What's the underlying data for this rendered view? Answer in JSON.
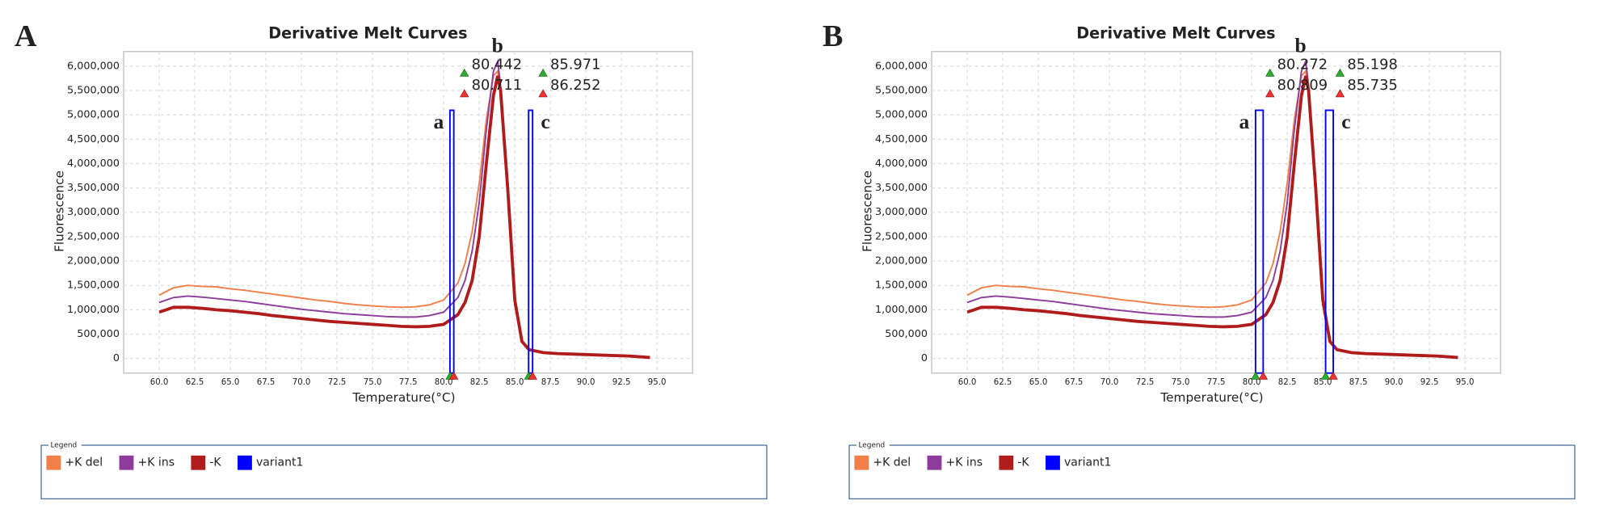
{
  "chart_data": [
    {
      "type": "line",
      "panel": "A",
      "title": "Derivative Melt Curves",
      "xlabel": "Temperature(°C)",
      "ylabel": "Fluorescence",
      "xlim": [
        57.5,
        97.5
      ],
      "ylim": [
        -300000,
        6300000
      ],
      "grid": true,
      "xticks": [
        {
          "value": 60,
          "label": "60.0"
        },
        {
          "value": 62.5,
          "label": "62.5"
        },
        {
          "value": 65,
          "label": "65.0"
        },
        {
          "value": 67.5,
          "label": "67.5"
        },
        {
          "value": 70,
          "label": "70.0"
        },
        {
          "value": 72.5,
          "label": "72.5"
        },
        {
          "value": 75,
          "label": "75.0"
        },
        {
          "value": 77.5,
          "label": "77.5"
        },
        {
          "value": 80,
          "label": "80.0"
        },
        {
          "value": 82.5,
          "label": "82.5"
        },
        {
          "value": 85,
          "label": "85.0"
        },
        {
          "value": 87.5,
          "label": "87.5"
        },
        {
          "value": 90,
          "label": "90.0"
        },
        {
          "value": 92.5,
          "label": "92.5"
        },
        {
          "value": 95,
          "label": "95.0"
        }
      ],
      "yticks": [
        0,
        {
          "value": 500000,
          "label": "500,000"
        },
        {
          "value": 1000000,
          "label": "1,000,000"
        },
        {
          "value": 1500000,
          "label": "1,500,000"
        },
        {
          "value": 2000000,
          "label": "2,000,000"
        },
        {
          "value": 2500000,
          "label": "2,500,000"
        },
        {
          "value": 3000000,
          "label": "3,000,000"
        },
        {
          "value": 3500000,
          "label": "3,500,000"
        },
        {
          "value": 4000000,
          "label": "4,000,000"
        },
        {
          "value": 4500000,
          "label": "4,500,000"
        },
        {
          "value": 5000000,
          "label": "5,000,000"
        },
        {
          "value": 5500000,
          "label": "5,500,000"
        },
        {
          "value": 6000000,
          "label": "6,000,000"
        }
      ],
      "x": [
        60,
        61,
        62,
        63,
        64,
        65,
        66,
        67,
        68,
        69,
        70,
        71,
        72,
        73,
        74,
        75,
        76,
        77,
        78,
        79,
        80,
        81,
        81.5,
        82,
        82.5,
        83,
        83.5,
        83.8,
        84,
        84.5,
        85,
        85.5,
        86,
        87,
        88,
        89,
        90,
        91,
        92,
        93,
        94,
        94.5
      ],
      "series": [
        {
          "name": "+K del",
          "color": "#f07f4a",
          "values": [
            1300000,
            1450000,
            1500000,
            1480000,
            1470000,
            1430000,
            1400000,
            1360000,
            1320000,
            1280000,
            1240000,
            1200000,
            1170000,
            1130000,
            1100000,
            1080000,
            1060000,
            1050000,
            1060000,
            1100000,
            1200000,
            1550000,
            1950000,
            2600000,
            3600000,
            4900000,
            5800000,
            5900000,
            5400000,
            3300000,
            1100000,
            330000,
            170000,
            120000,
            100000,
            90000,
            80000,
            70000,
            60000,
            50000,
            30000,
            20000
          ]
        },
        {
          "name": "+K ins",
          "color": "#8e3c9c",
          "values": [
            1150000,
            1250000,
            1280000,
            1260000,
            1230000,
            1200000,
            1170000,
            1130000,
            1090000,
            1050000,
            1010000,
            980000,
            950000,
            920000,
            900000,
            880000,
            860000,
            850000,
            850000,
            880000,
            950000,
            1250000,
            1600000,
            2200000,
            3200000,
            4700000,
            5900000,
            6100000,
            5600000,
            3400000,
            1100000,
            330000,
            170000,
            120000,
            100000,
            90000,
            80000,
            70000,
            60000,
            50000,
            30000,
            20000
          ]
        },
        {
          "name": "-K",
          "color": "#b01c1c",
          "values": [
            950000,
            1050000,
            1050000,
            1030000,
            1000000,
            980000,
            950000,
            920000,
            880000,
            850000,
            820000,
            790000,
            760000,
            740000,
            720000,
            700000,
            680000,
            660000,
            650000,
            660000,
            700000,
            900000,
            1150000,
            1600000,
            2500000,
            4000000,
            5400000,
            5800000,
            5500000,
            3500000,
            1200000,
            350000,
            180000,
            120000,
            100000,
            90000,
            80000,
            70000,
            60000,
            50000,
            30000,
            20000
          ]
        }
      ],
      "regions": {
        "name": "variant1",
        "color": "#0000ff",
        "bounds": [
          {
            "start": 80.442,
            "end": 80.711,
            "label": "a"
          },
          {
            "start": 85.971,
            "end": 86.252,
            "label": "c"
          }
        ]
      },
      "peak_label": "b",
      "legend_title": "Legend"
    },
    {
      "type": "line",
      "panel": "B",
      "title": "Derivative Melt Curves",
      "xlabel": "Temperature(°C)",
      "ylabel": "Fluorescence",
      "xlim": [
        57.5,
        97.5
      ],
      "ylim": [
        -300000,
        6300000
      ],
      "grid": true,
      "xticks": [
        {
          "value": 60,
          "label": "60.0"
        },
        {
          "value": 62.5,
          "label": "62.5"
        },
        {
          "value": 65,
          "label": "65.0"
        },
        {
          "value": 67.5,
          "label": "67.5"
        },
        {
          "value": 70,
          "label": "70.0"
        },
        {
          "value": 72.5,
          "label": "72.5"
        },
        {
          "value": 75,
          "label": "75.0"
        },
        {
          "value": 77.5,
          "label": "77.5"
        },
        {
          "value": 80,
          "label": "80.0"
        },
        {
          "value": 82.5,
          "label": "82.5"
        },
        {
          "value": 85,
          "label": "85.0"
        },
        {
          "value": 87.5,
          "label": "87.5"
        },
        {
          "value": 90,
          "label": "90.0"
        },
        {
          "value": 92.5,
          "label": "92.5"
        },
        {
          "value": 95,
          "label": "95.0"
        }
      ],
      "yticks": [
        0,
        {
          "value": 500000,
          "label": "500,000"
        },
        {
          "value": 1000000,
          "label": "1,000,000"
        },
        {
          "value": 1500000,
          "label": "1,500,000"
        },
        {
          "value": 2000000,
          "label": "2,000,000"
        },
        {
          "value": 2500000,
          "label": "2,500,000"
        },
        {
          "value": 3000000,
          "label": "3,000,000"
        },
        {
          "value": 3500000,
          "label": "3,500,000"
        },
        {
          "value": 4000000,
          "label": "4,000,000"
        },
        {
          "value": 4500000,
          "label": "4,500,000"
        },
        {
          "value": 5000000,
          "label": "5,000,000"
        },
        {
          "value": 5500000,
          "label": "5,500,000"
        },
        {
          "value": 6000000,
          "label": "6,000,000"
        }
      ],
      "x": [
        60,
        61,
        62,
        63,
        64,
        65,
        66,
        67,
        68,
        69,
        70,
        71,
        72,
        73,
        74,
        75,
        76,
        77,
        78,
        79,
        80,
        81,
        81.5,
        82,
        82.5,
        83,
        83.5,
        83.8,
        84,
        84.5,
        85,
        85.5,
        86,
        87,
        88,
        89,
        90,
        91,
        92,
        93,
        94,
        94.5
      ],
      "series": [
        {
          "name": "+K del",
          "color": "#f07f4a",
          "values": [
            1300000,
            1450000,
            1500000,
            1480000,
            1470000,
            1430000,
            1400000,
            1360000,
            1320000,
            1280000,
            1240000,
            1200000,
            1170000,
            1130000,
            1100000,
            1080000,
            1060000,
            1050000,
            1060000,
            1100000,
            1200000,
            1550000,
            1950000,
            2600000,
            3600000,
            4900000,
            5800000,
            5900000,
            5400000,
            3300000,
            1100000,
            330000,
            170000,
            120000,
            100000,
            90000,
            80000,
            70000,
            60000,
            50000,
            30000,
            20000
          ]
        },
        {
          "name": "+K ins",
          "color": "#8e3c9c",
          "values": [
            1150000,
            1250000,
            1280000,
            1260000,
            1230000,
            1200000,
            1170000,
            1130000,
            1090000,
            1050000,
            1010000,
            980000,
            950000,
            920000,
            900000,
            880000,
            860000,
            850000,
            850000,
            880000,
            950000,
            1250000,
            1600000,
            2200000,
            3200000,
            4700000,
            5900000,
            6100000,
            5600000,
            3400000,
            1100000,
            330000,
            170000,
            120000,
            100000,
            90000,
            80000,
            70000,
            60000,
            50000,
            30000,
            20000
          ]
        },
        {
          "name": "-K",
          "color": "#b01c1c",
          "values": [
            950000,
            1050000,
            1050000,
            1030000,
            1000000,
            980000,
            950000,
            920000,
            880000,
            850000,
            820000,
            790000,
            760000,
            740000,
            720000,
            700000,
            680000,
            660000,
            650000,
            660000,
            700000,
            900000,
            1150000,
            1600000,
            2500000,
            4000000,
            5400000,
            5800000,
            5500000,
            3500000,
            1200000,
            350000,
            180000,
            120000,
            100000,
            90000,
            80000,
            70000,
            60000,
            50000,
            30000,
            20000
          ]
        }
      ],
      "regions": {
        "name": "variant1",
        "color": "#0000ff",
        "bounds": [
          {
            "start": 80.272,
            "end": 80.809,
            "label": "a"
          },
          {
            "start": 85.198,
            "end": 85.735,
            "label": "c"
          }
        ]
      },
      "peak_label": "b",
      "legend_title": "Legend"
    }
  ]
}
